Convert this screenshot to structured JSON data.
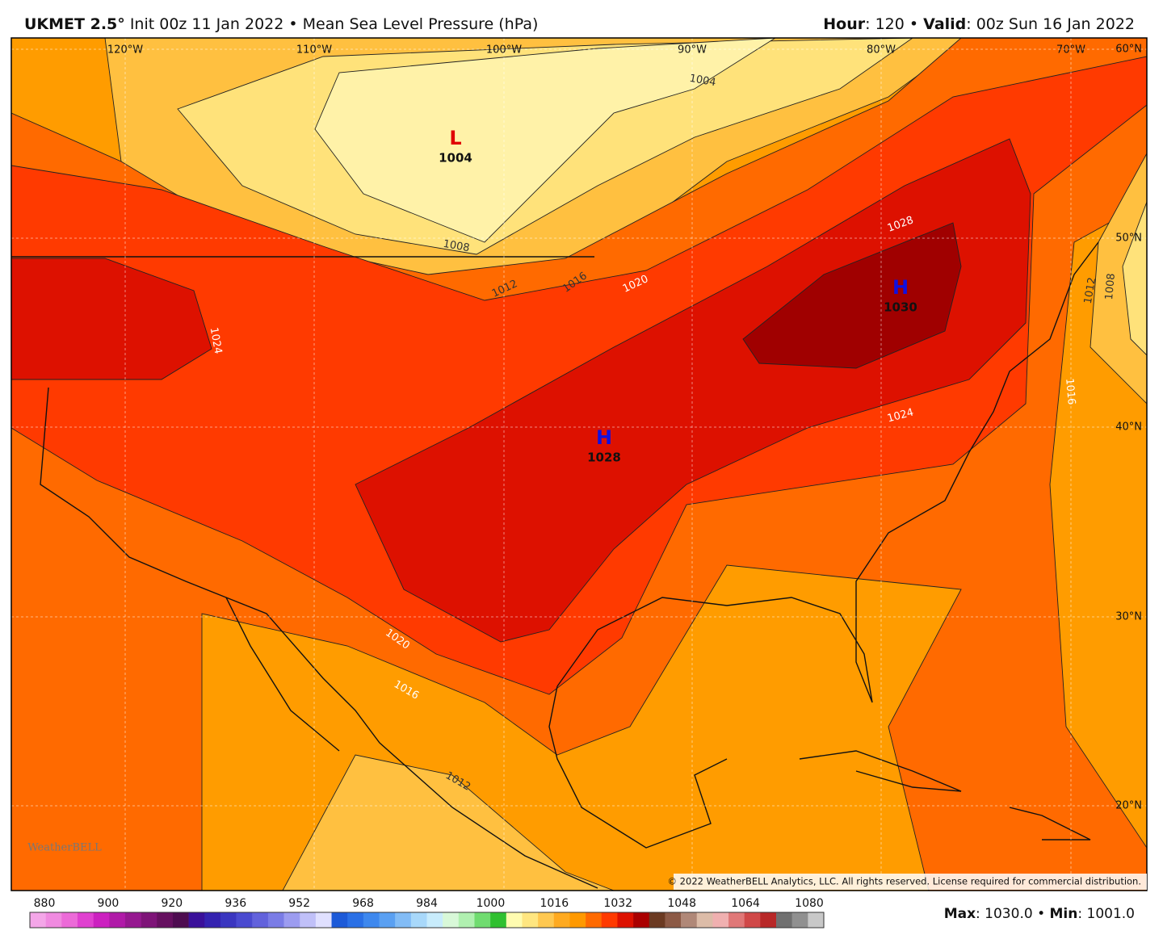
{
  "header": {
    "model": "UKMET 2.5°",
    "init": "Init 00z 11 Jan 2022",
    "separator": "•",
    "field": "Mean Sea Level Pressure (hPa)",
    "hour_label": "Hour",
    "hour": ": 120",
    "valid_label": "Valid",
    "valid": ": 00z Sun 16 Jan 2022"
  },
  "map": {
    "lon_labels": [
      "120°W",
      "110°W",
      "100°W",
      "90°W",
      "80°W",
      "70°W"
    ],
    "lat_labels": [
      "60°N",
      "50°N",
      "40°N",
      "30°N",
      "20°N"
    ],
    "contour_labels": [
      "1004",
      "1008",
      "1012",
      "1016",
      "1020",
      "1028",
      "1024",
      "1024",
      "1020",
      "1016",
      "1012",
      "1012",
      "1008",
      "1016"
    ],
    "centers": [
      {
        "symbol": "L",
        "value": "1004"
      },
      {
        "symbol": "H",
        "value": "1028"
      },
      {
        "symbol": "H",
        "value": "1030"
      }
    ],
    "logo": "WeatherBELL",
    "copyright": "© 2022 WeatherBELL Analytics, LLC. All rights reserved. License required for commercial distribution."
  },
  "colorbar": {
    "ticks": [
      "880",
      "900",
      "920",
      "936",
      "952",
      "968",
      "984",
      "1000",
      "1016",
      "1032",
      "1048",
      "1064",
      "1080"
    ],
    "colors": [
      "#f4a6e8",
      "#f08ae0",
      "#ec6ad8",
      "#e040d0",
      "#cc20c0",
      "#b01aa8",
      "#961890",
      "#7e1478",
      "#661060",
      "#4e0c50",
      "#3a109a",
      "#3422b0",
      "#3a36c0",
      "#4a4ad0",
      "#6262dc",
      "#7a7ce6",
      "#9c9cf0",
      "#c0c0f8",
      "#e0e0ff",
      "#1c5ad8",
      "#2a70e6",
      "#3e88ee",
      "#5aa0f2",
      "#82bcf6",
      "#a8d8fa",
      "#c8ecfc",
      "#d8f8d8",
      "#b0f0b0",
      "#70dc70",
      "#30c030",
      "#fffcb0",
      "#ffe680",
      "#ffc850",
      "#ffaa20",
      "#ff9900",
      "#ff6a00",
      "#ff3a00",
      "#dd1100",
      "#aa0000",
      "#6b3a22",
      "#8c5a46",
      "#b08878",
      "#dcbca8",
      "#f0b0b0",
      "#e07878",
      "#d04848",
      "#b82828",
      "#707070",
      "#909090",
      "#c8c8c8"
    ]
  },
  "footer": {
    "max_label": "Max",
    "max": ": 1030.0",
    "separator": "•",
    "min_label": "Min",
    "min": ": 1001.0"
  }
}
